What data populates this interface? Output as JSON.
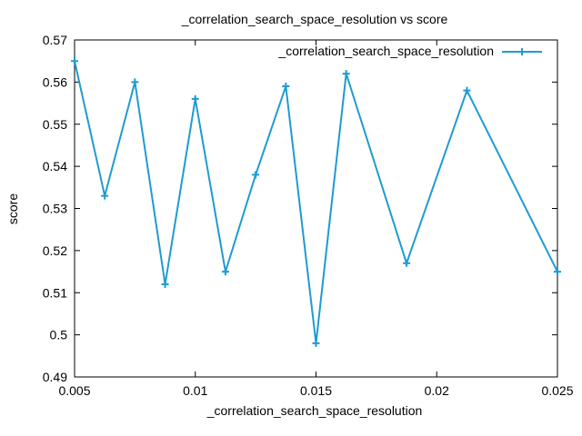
{
  "chart_data": {
    "type": "line",
    "title": "_correlation_search_space_resolution vs score",
    "xlabel": "_correlation_search_space_resolution",
    "ylabel": "score",
    "xlim": [
      0.005,
      0.025
    ],
    "ylim": [
      0.49,
      0.57
    ],
    "xticks": [
      "0.005",
      "0.01",
      "0.015",
      "0.02",
      "0.025"
    ],
    "yticks": [
      "0.49",
      "0.5",
      "0.51",
      "0.52",
      "0.53",
      "0.54",
      "0.55",
      "0.56",
      "0.57"
    ],
    "grid": false,
    "legend_position": "top-right",
    "series": [
      {
        "name": "_correlation_search_space_resolution",
        "color": "#1f9bd0",
        "marker": "plus",
        "x": [
          0.005,
          0.00625,
          0.0075,
          0.00875,
          0.01,
          0.01125,
          0.0125,
          0.01375,
          0.015,
          0.01625,
          0.01875,
          0.02125,
          0.025
        ],
        "y": [
          0.565,
          0.533,
          0.56,
          0.512,
          0.556,
          0.515,
          0.538,
          0.559,
          0.498,
          0.562,
          0.517,
          0.558,
          0.515
        ]
      }
    ]
  }
}
